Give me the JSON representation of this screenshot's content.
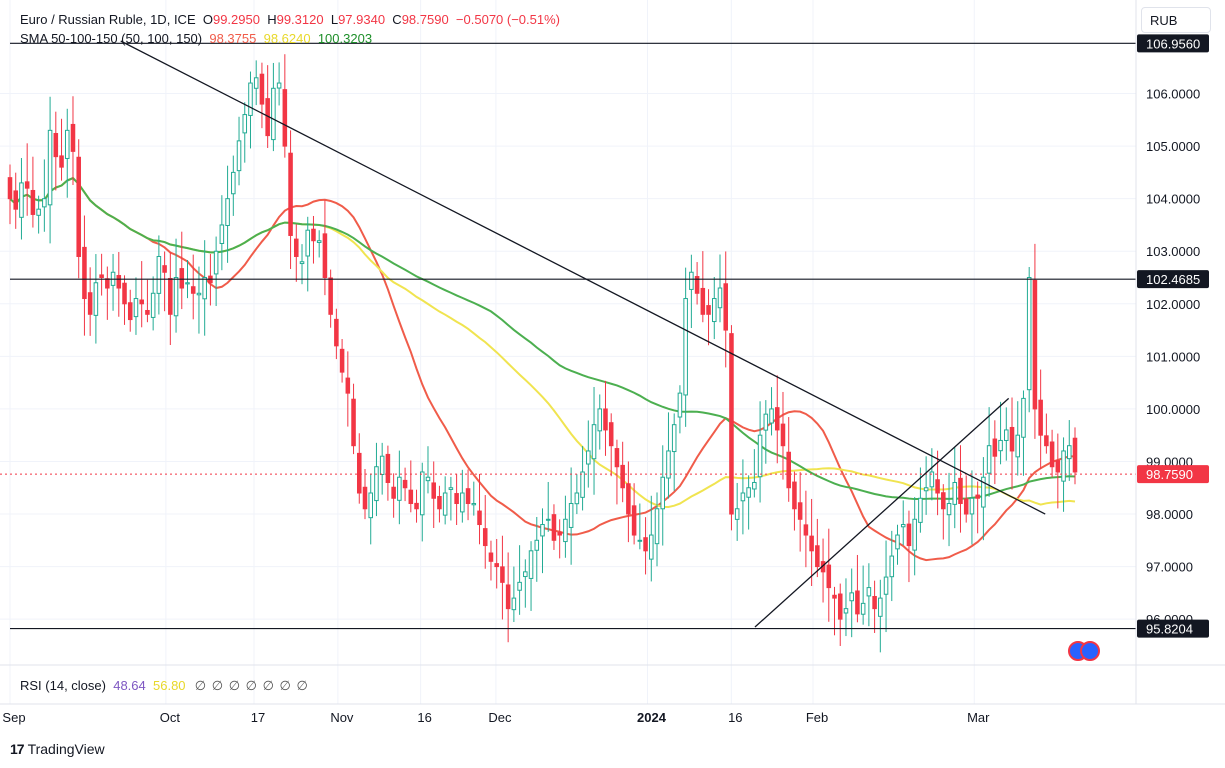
{
  "header": {
    "symbol": "Euro / Russian Ruble",
    "interval": "1D",
    "exchange": "ICE",
    "ohlc": {
      "o_label": "O",
      "o": "99.2950",
      "h_label": "H",
      "h": "99.3120",
      "l_label": "L",
      "l": "97.9340",
      "c_label": "C",
      "c": "98.7590",
      "change": "−0.5070 (−0.51%)"
    },
    "sma": {
      "label": "SMA 50-100-150 (50, 100, 150)",
      "v50": "98.3755",
      "v100": "98.6240",
      "v150": "100.3203"
    }
  },
  "rsi": {
    "label": "RSI (14, close)",
    "v1": "48.64",
    "v2": "56.80",
    "nulls": [
      "∅",
      "∅",
      "∅",
      "∅",
      "∅",
      "∅",
      "∅",
      "∅"
    ]
  },
  "currency": "RUB",
  "brand": "TradingView",
  "colors": {
    "up": "#22ab94",
    "down": "#f23645",
    "sma50": "#f05c4a",
    "sma100": "#f0e450",
    "sma150": "#4caf50",
    "lastPriceLine": "#f23645"
  },
  "chart_data": {
    "type": "candlestick",
    "title": "Euro / Russian Ruble, 1D, ICE",
    "ylim": [
      95.8,
      107.0
    ],
    "y_ticks": [
      "106.0000",
      "105.0000",
      "104.0000",
      "103.0000",
      "102.0000",
      "101.0000",
      "100.0000",
      "99.0000",
      "98.0000",
      "97.0000",
      "96.0000"
    ],
    "x_ticks": [
      {
        "label": "Sep",
        "t": 0
      },
      {
        "label": "Oct",
        "t": 0.145
      },
      {
        "label": "17",
        "t": 0.227
      },
      {
        "label": "Nov",
        "t": 0.305
      },
      {
        "label": "16",
        "t": 0.382
      },
      {
        "label": "Dec",
        "t": 0.452
      },
      {
        "label": "2024",
        "t": 0.593
      },
      {
        "label": "16",
        "t": 0.671
      },
      {
        "label": "Feb",
        "t": 0.747
      },
      {
        "label": "Mar",
        "t": 0.897
      }
    ],
    "price_labels": [
      {
        "value": 106.956,
        "text": "106.9560",
        "style": "black"
      },
      {
        "value": 102.4685,
        "text": "102.4685",
        "style": "black"
      },
      {
        "value": 98.759,
        "text": "98.7590",
        "style": "red"
      },
      {
        "value": 95.8204,
        "text": "95.8204",
        "style": "black"
      }
    ],
    "horizontal_levels": [
      106.956,
      102.4685,
      95.8204
    ],
    "trendlines": [
      {
        "t1": 0.103,
        "p1": 107.0,
        "t2": 0.963,
        "p2": 98.0
      },
      {
        "t1": 0.693,
        "p1": 95.85,
        "t2": 0.929,
        "p2": 100.2
      }
    ],
    "candles_close": [
      104.0,
      103.8,
      104.3,
      104.2,
      103.7,
      103.8,
      104.0,
      105.3,
      104.8,
      104.6,
      105.3,
      104.9,
      102.9,
      102.1,
      101.8,
      102.4,
      102.5,
      102.3,
      102.6,
      102.3,
      102.0,
      101.7,
      102.1,
      102.0,
      101.8,
      102.2,
      102.9,
      102.6,
      101.8,
      102.5,
      102.3,
      102.4,
      102.2,
      102.2,
      102.5,
      102.4,
      103.0,
      103.5,
      104.0,
      104.5,
      105.1,
      105.6,
      106.2,
      106.3,
      105.8,
      105.2,
      106.1,
      106.2,
      105.0,
      103.3,
      102.9,
      102.8,
      103.4,
      103.2,
      103.2,
      102.5,
      101.8,
      101.2,
      100.7,
      100.3,
      99.3,
      98.4,
      98.1,
      98.4,
      98.9,
      99.1,
      98.6,
      98.3,
      98.7,
      98.5,
      98.2,
      98.1,
      98.8,
      98.7,
      98.3,
      98.1,
      98.4,
      98.5,
      98.2,
      98.4,
      98.2,
      98.2,
      97.8,
      97.4,
      97.1,
      97.0,
      96.7,
      96.2,
      96.4,
      96.7,
      96.9,
      97.3,
      97.5,
      97.8,
      97.9,
      97.5,
      97.6,
      97.9,
      98.2,
      98.4,
      98.8,
      99.2,
      99.7,
      100.0,
      99.6,
      99.3,
      98.9,
      98.5,
      98.0,
      97.6,
      97.5,
      97.3,
      97.6,
      98.1,
      98.7,
      99.2,
      99.7,
      100.3,
      102.1,
      102.6,
      102.2,
      101.8,
      101.8,
      102.1,
      102.3,
      101.5,
      98.0,
      98.1,
      98.4,
      98.5,
      98.6,
      99.5,
      99.9,
      100.0,
      99.6,
      99.3,
      98.5,
      98.1,
      97.9,
      97.6,
      97.3,
      97.0,
      96.9,
      96.6,
      96.4,
      96.0,
      96.2,
      96.5,
      96.1,
      96.3,
      96.6,
      96.2,
      96.4,
      96.8,
      97.2,
      97.6,
      97.8,
      97.4,
      97.9,
      98.3,
      98.5,
      98.8,
      98.4,
      98.1,
      98.2,
      98.6,
      98.2,
      98.0,
      98.3,
      98.3,
      98.7,
      99.3,
      99.1,
      99.4,
      99.6,
      99.2,
      99.5,
      100.2,
      102.5,
      100.0,
      99.5,
      99.3,
      98.9,
      98.8,
      99.2,
      99.3,
      98.8
    ]
  }
}
